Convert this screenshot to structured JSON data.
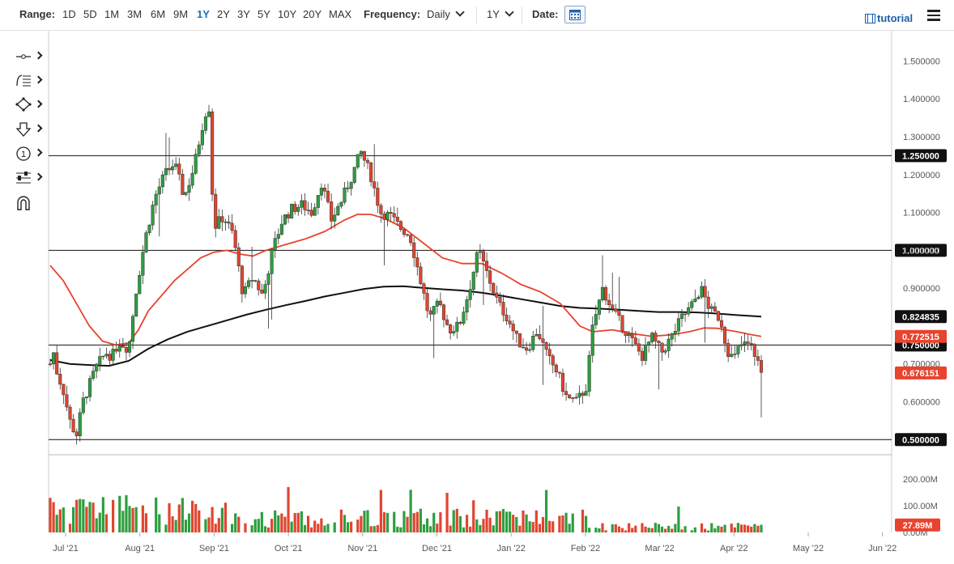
{
  "toolbar": {
    "range_label": "Range:",
    "ranges": [
      "1D",
      "5D",
      "1M",
      "3M",
      "6M",
      "9M",
      "1Y",
      "2Y",
      "3Y",
      "5Y",
      "10Y",
      "20Y",
      "MAX"
    ],
    "active_range": "1Y",
    "frequency_label": "Frequency:",
    "frequency_value": "Daily",
    "period_value": "1Y",
    "date_label": "Date:",
    "tutorial_label": "tutorial"
  },
  "drawing_tools": [
    "line-tool-icon",
    "fib-tool-icon",
    "shape-tool-icon",
    "arrow-down-tool-icon",
    "label-tool-icon",
    "measure-tool-icon",
    "magnet-tool-icon"
  ],
  "colors": {
    "up": "#2e9e3f",
    "down": "#e0452f",
    "ma_short": "#e8432e",
    "ma_long": "#111111",
    "accent": "#1b6fc0"
  },
  "chart_data": {
    "type": "candlestick",
    "x_tick_labels": [
      "Jul '21",
      "Aug '21",
      "Sep '21",
      "Oct '21",
      "Nov '21",
      "Dec '21",
      "Jan '22",
      "Feb '22",
      "Mar '22",
      "Apr '22",
      "May '22",
      "Jun '22"
    ],
    "price_axis": {
      "ylim": [
        0.46,
        1.58
      ],
      "tick_labels": [
        "1.500000",
        "1.400000",
        "1.300000",
        "1.200000",
        "1.100000",
        "1.000000",
        "0.900000",
        "0.700000",
        "0.600000"
      ]
    },
    "horizontal_levels": [
      {
        "value": 1.25,
        "label": "1.250000"
      },
      {
        "value": 1.0,
        "label": "1.000000"
      },
      {
        "value": 0.75,
        "label": "0.750000"
      },
      {
        "value": 0.5,
        "label": "0.500000"
      }
    ],
    "price_tags": [
      {
        "name": "ma-long",
        "value": 0.824835,
        "label": "0.824835"
      },
      {
        "name": "ma-short",
        "value": 0.772515,
        "label": "0.772515"
      },
      {
        "name": "last-price",
        "value": 0.676151,
        "label": "0.676151"
      }
    ],
    "price_path": [
      [
        0.66,
        0.7
      ],
      [
        0.67,
        0.73
      ],
      [
        0.68,
        0.68
      ],
      [
        0.7,
        0.63
      ],
      [
        0.72,
        0.55
      ],
      [
        0.74,
        0.51
      ],
      [
        0.76,
        0.6
      ],
      [
        0.8,
        0.69
      ],
      [
        0.83,
        0.73
      ],
      [
        0.85,
        0.72
      ],
      [
        0.87,
        0.76
      ],
      [
        0.9,
        0.74
      ],
      [
        0.92,
        0.88
      ],
      [
        0.95,
        1.03
      ],
      [
        0.98,
        1.14
      ],
      [
        1.01,
        1.2
      ],
      [
        1.04,
        1.23
      ],
      [
        1.07,
        1.14
      ],
      [
        1.1,
        1.22
      ],
      [
        1.13,
        1.35
      ],
      [
        1.145,
        1.39
      ],
      [
        1.16,
        1.06
      ],
      [
        1.19,
        1.09
      ],
      [
        1.22,
        1.04
      ],
      [
        1.25,
        0.88
      ],
      [
        1.28,
        0.93
      ],
      [
        1.31,
        0.88
      ],
      [
        1.34,
        1.0
      ],
      [
        1.37,
        1.08
      ],
      [
        1.4,
        1.11
      ],
      [
        1.43,
        1.12
      ],
      [
        1.46,
        1.1
      ],
      [
        1.49,
        1.18
      ],
      [
        1.52,
        1.08
      ],
      [
        1.55,
        1.13
      ],
      [
        1.58,
        1.19
      ],
      [
        1.61,
        1.26
      ],
      [
        1.64,
        1.2
      ],
      [
        1.67,
        1.1
      ],
      [
        1.7,
        1.09
      ],
      [
        1.73,
        1.06
      ],
      [
        1.76,
        1.04
      ],
      [
        1.79,
        0.93
      ],
      [
        1.82,
        0.82
      ],
      [
        1.85,
        0.86
      ],
      [
        1.88,
        0.79
      ],
      [
        1.91,
        0.8
      ],
      [
        1.94,
        0.89
      ],
      [
        1.97,
        1.0
      ],
      [
        2.0,
        0.93
      ],
      [
        2.03,
        0.86
      ],
      [
        2.06,
        0.82
      ],
      [
        2.09,
        0.76
      ],
      [
        2.12,
        0.74
      ],
      [
        2.15,
        0.79
      ],
      [
        2.18,
        0.72
      ],
      [
        2.21,
        0.68
      ],
      [
        2.24,
        0.61
      ],
      [
        2.27,
        0.6
      ],
      [
        2.3,
        0.64
      ],
      [
        2.32,
        0.8
      ],
      [
        2.35,
        0.9
      ],
      [
        2.38,
        0.84
      ],
      [
        2.41,
        0.8
      ],
      [
        2.44,
        0.76
      ],
      [
        2.47,
        0.72
      ],
      [
        2.5,
        0.77
      ],
      [
        2.53,
        0.73
      ],
      [
        2.56,
        0.77
      ],
      [
        2.59,
        0.82
      ],
      [
        2.62,
        0.85
      ],
      [
        2.65,
        0.9
      ],
      [
        2.68,
        0.84
      ],
      [
        2.71,
        0.82
      ],
      [
        2.73,
        0.74
      ],
      [
        2.75,
        0.71
      ],
      [
        2.77,
        0.75
      ],
      [
        2.8,
        0.75
      ],
      [
        2.82,
        0.72
      ],
      [
        2.835,
        0.676
      ]
    ],
    "ma_long_path": [
      [
        0.66,
        0.71
      ],
      [
        0.72,
        0.7
      ],
      [
        0.78,
        0.697
      ],
      [
        0.84,
        0.695
      ],
      [
        0.9,
        0.708
      ],
      [
        0.96,
        0.74
      ],
      [
        1.02,
        0.765
      ],
      [
        1.08,
        0.785
      ],
      [
        1.14,
        0.8
      ],
      [
        1.2,
        0.815
      ],
      [
        1.26,
        0.83
      ],
      [
        1.32,
        0.843
      ],
      [
        1.38,
        0.855
      ],
      [
        1.44,
        0.866
      ],
      [
        1.5,
        0.878
      ],
      [
        1.56,
        0.888
      ],
      [
        1.62,
        0.898
      ],
      [
        1.68,
        0.904
      ],
      [
        1.74,
        0.905
      ],
      [
        1.8,
        0.901
      ],
      [
        1.86,
        0.897
      ],
      [
        1.92,
        0.894
      ],
      [
        1.98,
        0.888
      ],
      [
        2.04,
        0.88
      ],
      [
        2.1,
        0.871
      ],
      [
        2.16,
        0.862
      ],
      [
        2.22,
        0.853
      ],
      [
        2.28,
        0.848
      ],
      [
        2.34,
        0.846
      ],
      [
        2.4,
        0.843
      ],
      [
        2.46,
        0.84
      ],
      [
        2.52,
        0.837
      ],
      [
        2.58,
        0.837
      ],
      [
        2.64,
        0.836
      ],
      [
        2.7,
        0.833
      ],
      [
        2.76,
        0.829
      ],
      [
        2.835,
        0.825
      ]
    ],
    "ma_short_path": [
      [
        0.66,
        0.96
      ],
      [
        0.7,
        0.92
      ],
      [
        0.74,
        0.86
      ],
      [
        0.78,
        0.8
      ],
      [
        0.82,
        0.76
      ],
      [
        0.86,
        0.75
      ],
      [
        0.9,
        0.755
      ],
      [
        0.93,
        0.79
      ],
      [
        0.96,
        0.84
      ],
      [
        1.0,
        0.88
      ],
      [
        1.04,
        0.92
      ],
      [
        1.08,
        0.95
      ],
      [
        1.12,
        0.98
      ],
      [
        1.16,
        0.995
      ],
      [
        1.2,
        1.0
      ],
      [
        1.24,
        0.99
      ],
      [
        1.28,
        0.985
      ],
      [
        1.32,
        1.0
      ],
      [
        1.38,
        1.015
      ],
      [
        1.44,
        1.03
      ],
      [
        1.5,
        1.05
      ],
      [
        1.56,
        1.08
      ],
      [
        1.6,
        1.095
      ],
      [
        1.64,
        1.095
      ],
      [
        1.68,
        1.085
      ],
      [
        1.74,
        1.06
      ],
      [
        1.8,
        1.02
      ],
      [
        1.86,
        0.98
      ],
      [
        1.92,
        0.965
      ],
      [
        1.98,
        0.965
      ],
      [
        2.04,
        0.94
      ],
      [
        2.1,
        0.91
      ],
      [
        2.16,
        0.89
      ],
      [
        2.22,
        0.86
      ],
      [
        2.28,
        0.8
      ],
      [
        2.32,
        0.785
      ],
      [
        2.38,
        0.79
      ],
      [
        2.44,
        0.78
      ],
      [
        2.5,
        0.773
      ],
      [
        2.56,
        0.777
      ],
      [
        2.62,
        0.786
      ],
      [
        2.66,
        0.795
      ],
      [
        2.7,
        0.794
      ],
      [
        2.76,
        0.785
      ],
      [
        2.8,
        0.778
      ],
      [
        2.835,
        0.7725
      ]
    ],
    "volume_axis": {
      "ylim": [
        0,
        260
      ],
      "unit": "M",
      "tick_labels": [
        "200.00M",
        "100.00M",
        "0.00M"
      ]
    },
    "volume_tag": {
      "value": 27.89,
      "label": "27.89M"
    }
  }
}
